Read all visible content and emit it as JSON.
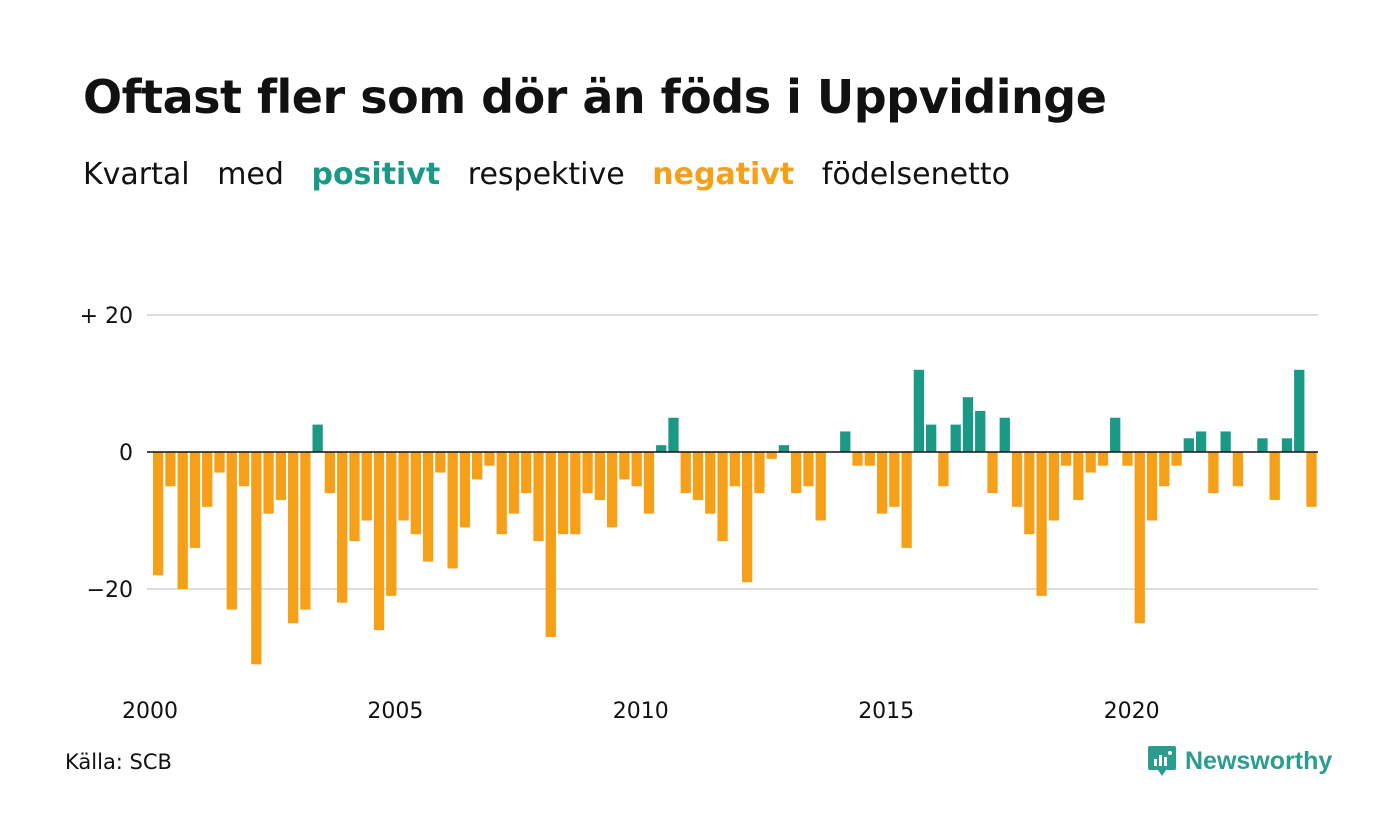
{
  "title": "Oftast fler som dör än föds i Uppvidinge",
  "subtitle": {
    "w1": "Kvartal",
    "w2": "med",
    "positive": "positivt",
    "w3": "respektive",
    "negative": "negativt",
    "w4": "födelsenetto"
  },
  "colors": {
    "positive": "#1a9987",
    "negative": "#f6a01a",
    "grid": "#dddddd",
    "text": "#111111"
  },
  "source": "Källa: SCB",
  "brand": "Newsworthy",
  "chart_data": {
    "type": "bar",
    "x_start": "2000 Q1",
    "frequency": "quarterly",
    "y_ticks": [
      {
        "value": 20,
        "label": "+ 20"
      },
      {
        "value": 0,
        "label": "0"
      },
      {
        "value": -20,
        "label": "−20"
      }
    ],
    "x_ticks": [
      {
        "year": 2000,
        "label": "2000"
      },
      {
        "year": 2005,
        "label": "2005"
      },
      {
        "year": 2010,
        "label": "2010"
      },
      {
        "year": 2015,
        "label": "2015"
      },
      {
        "year": 2020,
        "label": "2020"
      }
    ],
    "ylim": [
      -33,
      20
    ],
    "values": [
      -18,
      -5,
      -20,
      -14,
      -8,
      -3,
      -23,
      -5,
      -31,
      -9,
      -7,
      -25,
      -23,
      4,
      -6,
      -22,
      -13,
      -10,
      -26,
      -21,
      -10,
      -12,
      -16,
      -3,
      -17,
      -11,
      -4,
      -2,
      -12,
      -9,
      -6,
      -13,
      -27,
      -12,
      -12,
      -6,
      -7,
      -11,
      -4,
      -5,
      -9,
      1,
      5,
      -6,
      -7,
      -9,
      -13,
      -5,
      -19,
      -6,
      -1,
      1,
      -6,
      -5,
      -10,
      0,
      3,
      -2,
      -2,
      -9,
      -8,
      -14,
      12,
      4,
      -5,
      4,
      8,
      6,
      -6,
      5,
      -8,
      -12,
      -21,
      -10,
      -2,
      -7,
      -3,
      -2,
      5,
      -2,
      -25,
      -10,
      -5,
      -2,
      2,
      3,
      -6,
      3,
      -5,
      0,
      2,
      -7,
      2,
      12,
      -8
    ]
  }
}
